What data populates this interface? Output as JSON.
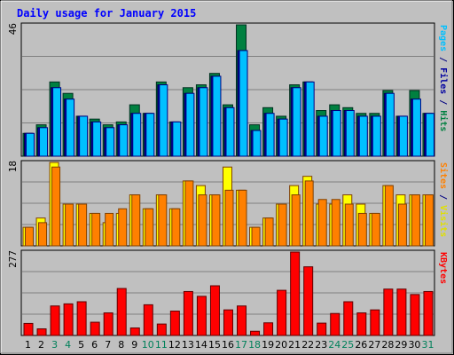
{
  "chart_data": {
    "type": "bar",
    "title": "Daily usage for January 2015",
    "categories": [
      "1",
      "2",
      "3",
      "4",
      "5",
      "6",
      "7",
      "8",
      "9",
      "10",
      "11",
      "12",
      "13",
      "14",
      "15",
      "16",
      "17",
      "18",
      "19",
      "20",
      "21",
      "22",
      "23",
      "24",
      "25",
      "26",
      "27",
      "28",
      "29",
      "30",
      "31"
    ],
    "weekend_days": [
      "3",
      "4",
      "10",
      "11",
      "17",
      "18",
      "24",
      "25",
      "31"
    ],
    "panels": [
      {
        "name": "hits_files_pages",
        "ymax_label": "46",
        "ymax": 46,
        "right_label_parts": [
          {
            "text": "Pages",
            "color": "#00c0ff"
          },
          {
            "text": " / ",
            "color": "#000080"
          },
          {
            "text": "Files",
            "color": "#0000a0"
          },
          {
            "text": " / ",
            "color": "#000080"
          },
          {
            "text": "Hits",
            "color": "#008040"
          }
        ],
        "series": [
          {
            "name": "Hits",
            "color": "#008040",
            "values": [
              8,
              11,
              26,
              22,
              14,
              13,
              11,
              12,
              18,
              15,
              26,
              12,
              24,
              25,
              29,
              18,
              46,
              11,
              17,
              14,
              25,
              26,
              16,
              18,
              17,
              15,
              15,
              23,
              14,
              23,
              15
            ]
          },
          {
            "name": "Files",
            "color": "#0000a0",
            "values": [
              8,
              10,
              24,
              20,
              14,
              12,
              10,
              11,
              15,
              15,
              25,
              12,
              22,
              24,
              28,
              17,
              37,
              9,
              15,
              13,
              24,
              26,
              14,
              16,
              16,
              14,
              14,
              22,
              14,
              20,
              15
            ]
          },
          {
            "name": "Pages",
            "color": "#00c0ff",
            "values": [
              8,
              10,
              24,
              20,
              14,
              12,
              10,
              11,
              15,
              15,
              25,
              12,
              22,
              24,
              28,
              17,
              37,
              9,
              15,
              13,
              24,
              26,
              14,
              16,
              16,
              14,
              14,
              22,
              14,
              20,
              15
            ]
          }
        ]
      },
      {
        "name": "visits_sites",
        "ymax_label": "18",
        "ymax": 18,
        "right_label_parts": [
          {
            "text": "Sites",
            "color": "#ff8000"
          },
          {
            "text": " / ",
            "color": "#000080"
          },
          {
            "text": "Visits",
            "color": "#e0e000"
          }
        ],
        "series": [
          {
            "name": "Visits",
            "color": "#ffff00",
            "values": [
              4,
              6,
              18,
              9,
              9,
              7,
              5,
              7,
              11,
              8,
              11,
              8,
              14,
              13,
              11,
              17,
              12,
              4,
              6,
              9,
              13,
              15,
              9,
              9,
              11,
              9,
              7,
              13,
              11,
              11,
              11
            ]
          },
          {
            "name": "Sites",
            "color": "#ff8000",
            "values": [
              4,
              5,
              17,
              9,
              9,
              7,
              7,
              8,
              11,
              8,
              11,
              8,
              14,
              11,
              11,
              12,
              12,
              4,
              6,
              9,
              11,
              14,
              10,
              10,
              9,
              7,
              7,
              13,
              9,
              11,
              11
            ]
          }
        ]
      },
      {
        "name": "kbytes",
        "ymax_label": "277",
        "ymax": 277,
        "right_label_parts": [
          {
            "text": "KBytes",
            "color": "#ff0000"
          }
        ],
        "series": [
          {
            "name": "KBytes",
            "color": "#ff0000",
            "values": [
              40,
              22,
              98,
              105,
              112,
              44,
              75,
              156,
              25,
              102,
              38,
              81,
              146,
              130,
              165,
              85,
              98,
              14,
              42,
              150,
              277,
              228,
              41,
              73,
              112,
              75,
              85,
              154,
              154,
              136,
              146
            ]
          }
        ]
      }
    ]
  }
}
